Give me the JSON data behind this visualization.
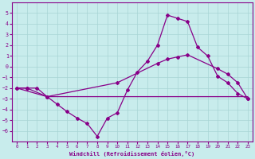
{
  "xlabel": "Windchill (Refroidissement éolien,°C)",
  "background_color": "#c8ecec",
  "grid_color": "#a8d4d4",
  "line_color": "#880088",
  "xlim": [
    -0.5,
    23.5
  ],
  "ylim": [
    -7,
    6
  ],
  "yticks": [
    -6,
    -5,
    -4,
    -3,
    -2,
    -1,
    0,
    1,
    2,
    3,
    4,
    5
  ],
  "xticks": [
    0,
    1,
    2,
    3,
    4,
    5,
    6,
    7,
    8,
    9,
    10,
    11,
    12,
    13,
    14,
    15,
    16,
    17,
    18,
    19,
    20,
    21,
    22,
    23
  ],
  "series1_x": [
    0,
    1,
    2,
    3,
    4,
    5,
    6,
    7,
    8,
    9,
    10,
    11,
    12,
    13,
    14,
    15,
    16,
    17,
    18,
    19,
    20,
    21,
    22,
    23
  ],
  "series1_y": [
    -2.0,
    -2.0,
    -2.0,
    -2.8,
    -3.5,
    -4.2,
    -4.8,
    -5.3,
    -6.5,
    -4.8,
    -4.3,
    -2.2,
    -0.5,
    0.5,
    2.0,
    4.8,
    4.5,
    4.2,
    1.8,
    1.0,
    -0.9,
    -1.5,
    -2.5,
    -3.0
  ],
  "series2_x": [
    0,
    1,
    3,
    10,
    14,
    15,
    16,
    17,
    20,
    21,
    22,
    23
  ],
  "series2_y": [
    -2.0,
    -2.0,
    -2.8,
    -1.5,
    0.3,
    0.7,
    0.9,
    1.1,
    -0.2,
    -0.7,
    -1.5,
    -3.0
  ],
  "series3_x": [
    0,
    3,
    10,
    15,
    20,
    21,
    22,
    23
  ],
  "series3_y": [
    -2.0,
    -2.8,
    -2.8,
    -2.8,
    -2.8,
    -2.8,
    -2.8,
    -2.8
  ]
}
